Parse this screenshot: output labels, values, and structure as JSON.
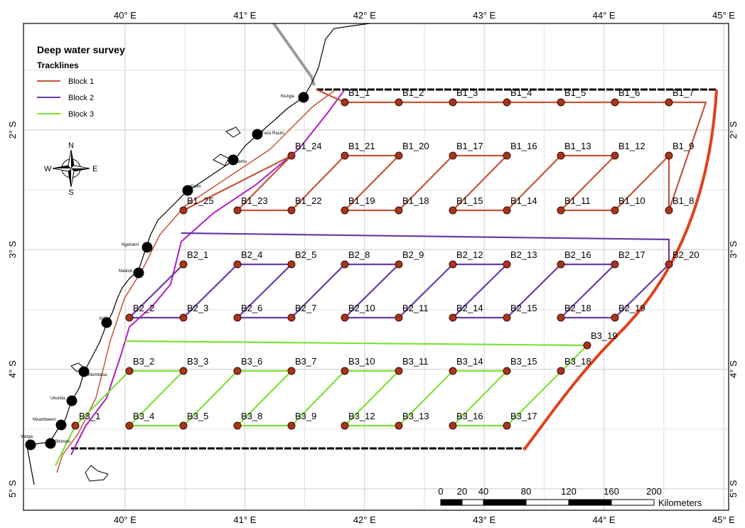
{
  "map": {
    "title": "Deep water survey",
    "legend": {
      "title": "Tracklines",
      "items": [
        {
          "label": "Block 1",
          "color": "#c4553a"
        },
        {
          "label": "Block 2",
          "color": "#6a3aa6"
        },
        {
          "label": "Block 3",
          "color": "#7fe03a"
        }
      ]
    },
    "compass": {
      "n": "N",
      "s": "S",
      "e": "E",
      "w": "W"
    },
    "lon_ticks": [
      {
        "value": 40,
        "label": "40° E"
      },
      {
        "value": 41,
        "label": "41° E"
      },
      {
        "value": 42,
        "label": "42° E"
      },
      {
        "value": 43,
        "label": "43° E"
      },
      {
        "value": 44,
        "label": "44° E"
      },
      {
        "value": 45,
        "label": "45° E"
      }
    ],
    "lat_ticks": [
      {
        "value": 2,
        "label": "2° S"
      },
      {
        "value": 3,
        "label": "3° S"
      },
      {
        "value": 4,
        "label": "4° S"
      },
      {
        "value": 5,
        "label": "5° S"
      }
    ],
    "stations": [
      [
        "B1_1",
        "B1_2",
        "B1_3",
        "B1_4",
        "B1_5",
        "B1_6",
        "B1_7",
        "B1_24",
        "B1_21",
        "B1_20",
        "B1_17",
        "B1_16",
        "B1_13",
        "B1_12",
        "B1_9",
        "B1_25",
        "B1_23",
        "B1_22",
        "B1_19",
        "B1_18",
        "B1_15",
        "B1_14",
        "B1_11",
        "B1_10",
        "B1_8"
      ],
      [
        "B2_1",
        "B2_4",
        "B2_5",
        "B2_8",
        "B2_9",
        "B2_12",
        "B2_13",
        "B2_16",
        "B2_17",
        "B2_20",
        "B2_2",
        "B2_3",
        "B2_6",
        "B2_7",
        "B2_10",
        "B2_11",
        "B2_14",
        "B2_15",
        "B2_18",
        "B2_19"
      ],
      [
        "B3_19",
        "B3_2",
        "B3_3",
        "B3_6",
        "B3_7",
        "B3_10",
        "B3_11",
        "B3_14",
        "B3_15",
        "B3_18",
        "B3_1",
        "B3_4",
        "B3_5",
        "B3_8",
        "B3_9",
        "B3_12",
        "B3_13",
        "B3_16",
        "B3_17"
      ]
    ],
    "towns": [
      "Kiunga",
      "Faza Rasini",
      "Lamu",
      "Kipini",
      "Ngomeni",
      "Malindi",
      "Kilifi",
      "Mombasa",
      "Ukunda",
      "Msambweni",
      "Shimoni",
      "Vanga"
    ],
    "scale_bar": {
      "ticks": [
        0,
        20,
        40,
        80,
        120,
        160,
        200
      ],
      "unit": "Kilometers"
    }
  }
}
